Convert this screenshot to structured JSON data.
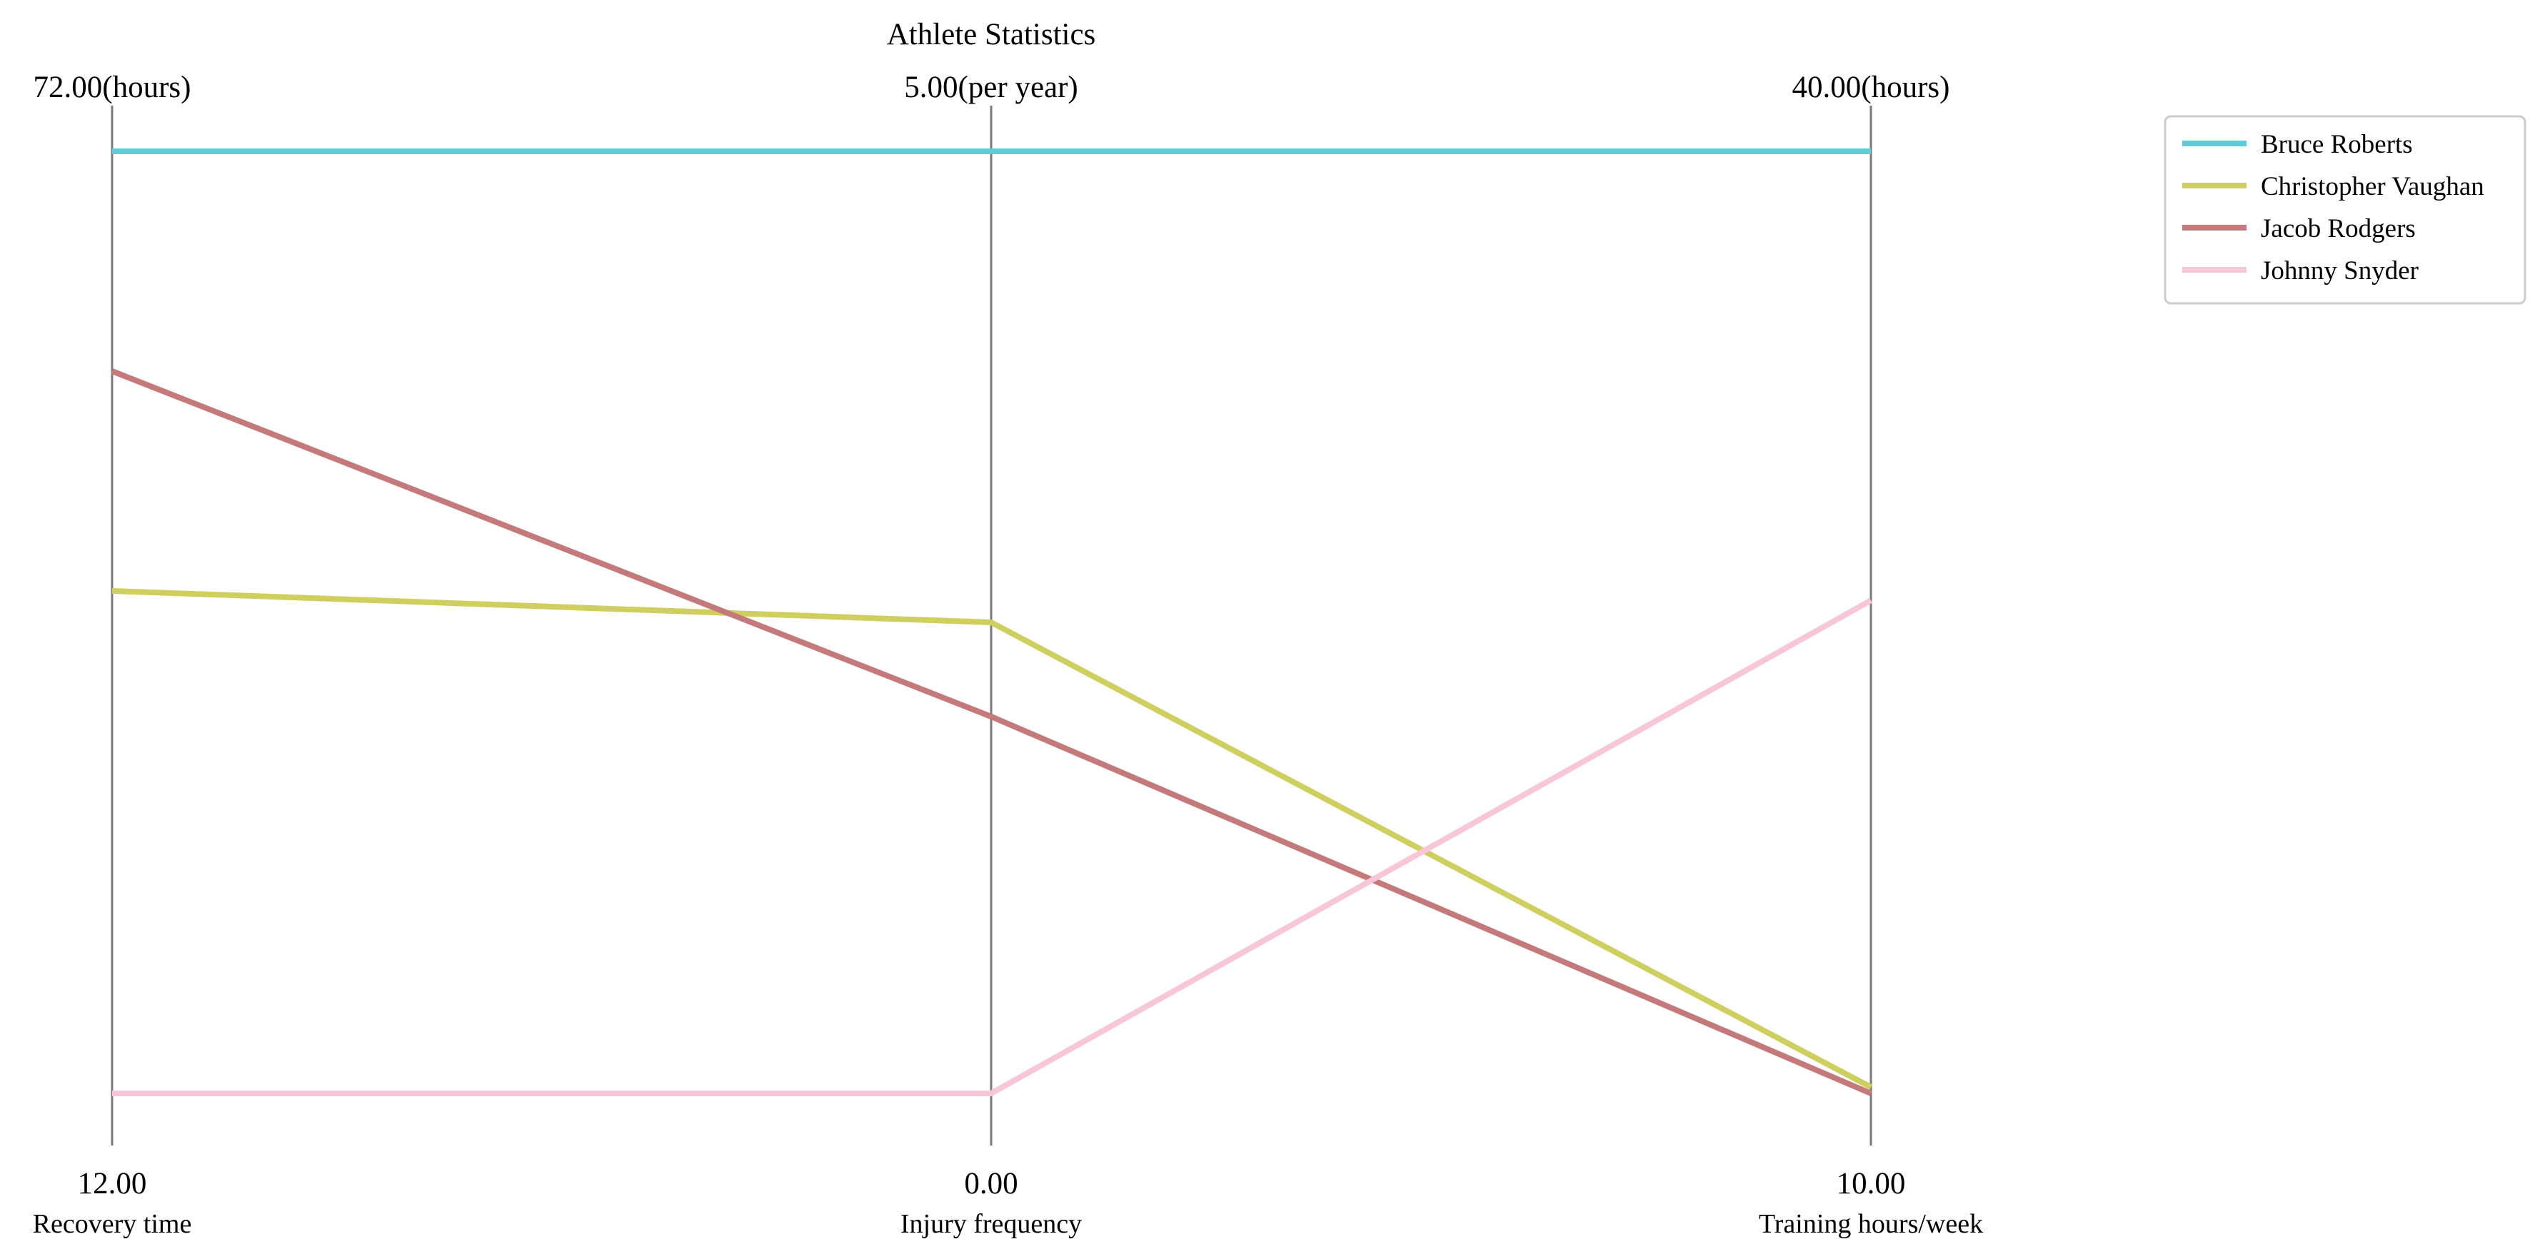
{
  "chart_data": {
    "type": "parallel-coordinates",
    "title": "Athlete Statistics",
    "axes": [
      {
        "name": "Recovery time",
        "min": 12.0,
        "max": 72.0,
        "min_label": "12.00",
        "max_label": "72.00(hours)"
      },
      {
        "name": "Injury frequency",
        "min": 0.0,
        "max": 5.0,
        "min_label": "0.00",
        "max_label": "5.00(per year)"
      },
      {
        "name": "Training hours/week",
        "min": 10.0,
        "max": 40.0,
        "min_label": "10.00",
        "max_label": "40.00(hours)"
      }
    ],
    "series": [
      {
        "name": "Bruce Roberts",
        "color": "#5ccfd6",
        "values": [
          72.0,
          5.0,
          40.0
        ]
      },
      {
        "name": "Christopher Vaughan",
        "color": "#cfcf60",
        "values": [
          44.0,
          2.5,
          10.2
        ]
      },
      {
        "name": "Jacob Rodgers",
        "color": "#c47a7a",
        "values": [
          58.0,
          2.0,
          10.0
        ]
      },
      {
        "name": "Johnny Snyder",
        "color": "#f7c6d8",
        "values": [
          12.0,
          0.0,
          25.7
        ]
      }
    ],
    "legend": "top-right",
    "grid": false
  }
}
